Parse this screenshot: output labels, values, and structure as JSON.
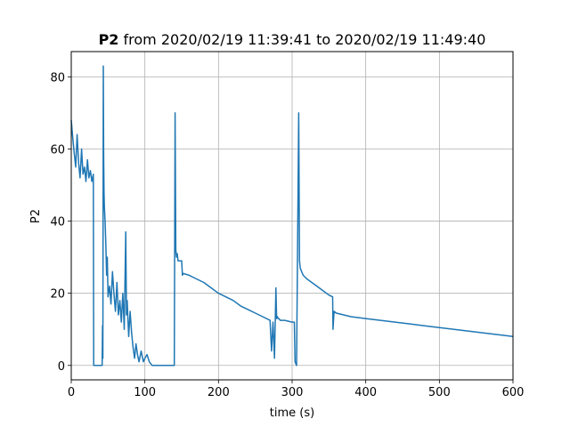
{
  "chart_data": {
    "type": "line",
    "title_bold": "P2",
    "title_rest": "from 2020/02/19 11:39:41 to 2020/02/19 11:49:40",
    "xlabel": "time (s)",
    "ylabel": "P2",
    "xlim": [
      0,
      600
    ],
    "ylim": [
      -4,
      87
    ],
    "xticks": [
      0,
      100,
      200,
      300,
      400,
      500,
      600
    ],
    "yticks": [
      0,
      20,
      40,
      60,
      80
    ],
    "grid": true,
    "line_color": "#1f77b4",
    "series": [
      {
        "x": [
          0,
          2,
          4,
          6,
          8,
          10,
          12,
          14,
          16,
          18,
          20,
          22,
          24,
          26,
          28,
          30,
          30.5,
          42,
          42.5,
          43,
          43.5,
          44,
          44.5,
          45,
          46,
          47,
          48,
          49,
          50,
          52,
          54,
          56,
          58,
          60,
          62,
          64,
          66,
          68,
          70,
          72,
          74,
          75,
          76,
          78,
          80,
          82,
          84,
          86,
          88,
          90,
          92,
          95,
          98,
          100,
          103,
          106,
          110,
          113,
          116,
          120,
          125,
          130,
          135,
          140,
          141,
          142,
          143,
          144,
          145,
          150,
          151,
          152,
          160,
          170,
          180,
          190,
          200,
          210,
          220,
          230,
          240,
          250,
          260,
          270,
          272,
          274,
          276,
          278,
          279,
          280,
          281,
          282,
          284,
          290,
          300,
          303,
          304,
          306,
          309,
          310,
          311,
          312,
          313,
          314,
          315,
          320,
          330,
          340,
          350,
          355,
          355.5,
          357,
          360,
          370,
          380,
          400,
          420,
          440,
          460,
          480,
          500,
          520,
          540,
          560,
          580,
          600
        ],
        "values": [
          68,
          63,
          59,
          55,
          64,
          56,
          52,
          60,
          53,
          55,
          51,
          57,
          52,
          54,
          51,
          53,
          0,
          0,
          11,
          2,
          83,
          58,
          48,
          44,
          40,
          33,
          25,
          30,
          19,
          22,
          17,
          26,
          20,
          15,
          23,
          14,
          18,
          12,
          20,
          10,
          37,
          14,
          18,
          8,
          15,
          9,
          5,
          2,
          6,
          3,
          1,
          4,
          1,
          2,
          3,
          1,
          0,
          0,
          0,
          0,
          0,
          0,
          0,
          0,
          70,
          32,
          30,
          31,
          29,
          29,
          25,
          25.5,
          25,
          24,
          23,
          21.5,
          20,
          19,
          18,
          16.5,
          15.5,
          14.5,
          13.5,
          12.5,
          4,
          12,
          2,
          21.5,
          13,
          13.5,
          13,
          13,
          12.5,
          12.5,
          12,
          12,
          1,
          0,
          70,
          29,
          27,
          26.5,
          26,
          25.5,
          25,
          24,
          22.5,
          21,
          19.5,
          19,
          10,
          15,
          14.5,
          14,
          13.5,
          13,
          12.5,
          12,
          11.5,
          11,
          10.5,
          10,
          9.5,
          9,
          8.5,
          8
        ]
      }
    ]
  }
}
